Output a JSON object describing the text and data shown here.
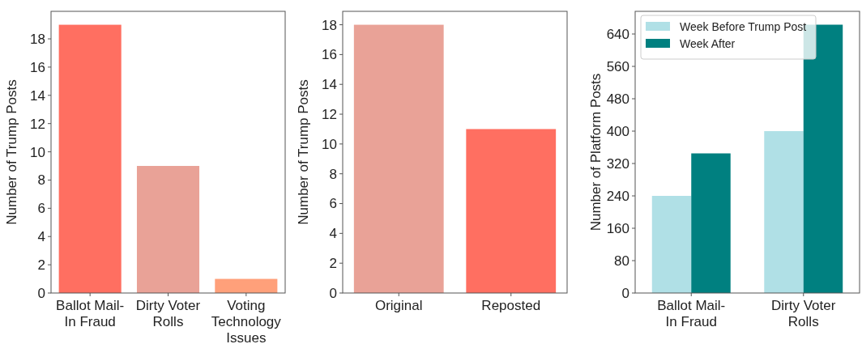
{
  "chart_data": [
    {
      "type": "bar",
      "ylabel": "Number of Trump Posts",
      "categories": [
        "Ballot Mail-\nIn Fraud",
        "Dirty Voter\nRolls",
        "Voting\nTechnology\nIssues"
      ],
      "values": [
        19,
        9,
        1
      ],
      "colors": [
        "#ff6f61",
        "#e9a297",
        "#ffa07a"
      ],
      "ylim": [
        0,
        19.95
      ],
      "yticks": [
        0,
        2,
        4,
        6,
        8,
        10,
        12,
        14,
        16,
        18
      ]
    },
    {
      "type": "bar",
      "ylabel": "Number of Trump Posts",
      "categories": [
        "Original",
        "Reposted"
      ],
      "values": [
        18,
        11
      ],
      "colors": [
        "#e9a297",
        "#ff6f61"
      ],
      "ylim": [
        0,
        18.9
      ],
      "yticks": [
        0,
        2,
        4,
        6,
        8,
        10,
        12,
        14,
        16,
        18
      ]
    },
    {
      "type": "bar",
      "ylabel": "Number of Platform Posts",
      "categories": [
        "Ballot Mail-\nIn Fraud",
        "Dirty Voter\nRolls"
      ],
      "legend": "top left",
      "ylim": [
        0,
        696
      ],
      "yticks": [
        0,
        80,
        160,
        240,
        320,
        400,
        480,
        560,
        640
      ],
      "series": [
        {
          "name": "Week Before Trump Post",
          "color": "#b0e0e6",
          "values": [
            240,
            400
          ]
        },
        {
          "name": "Week After",
          "color": "#008080",
          "values": [
            345,
            663
          ]
        }
      ]
    }
  ]
}
